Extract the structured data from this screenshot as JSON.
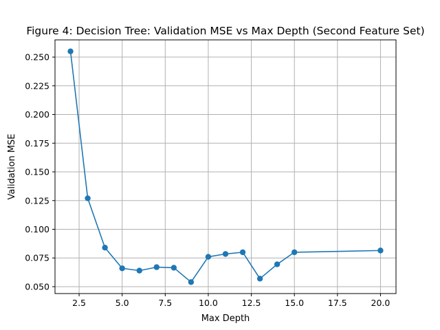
{
  "chart_data": {
    "type": "line",
    "title": "Figure 4: Decision Tree: Validation MSE vs Max Depth (Second Feature Set)",
    "xlabel": "Max Depth",
    "ylabel": "Validation MSE",
    "xlim": [
      1.1,
      20.9
    ],
    "ylim": [
      0.044,
      0.265
    ],
    "xticks": [
      2.5,
      5.0,
      7.5,
      10.0,
      12.5,
      15.0,
      17.5,
      20.0
    ],
    "xtick_labels": [
      "2.5",
      "5.0",
      "7.5",
      "10.0",
      "12.5",
      "15.0",
      "17.5",
      "20.0"
    ],
    "yticks": [
      0.05,
      0.075,
      0.1,
      0.125,
      0.15,
      0.175,
      0.2,
      0.225,
      0.25
    ],
    "ytick_labels": [
      "0.050",
      "0.075",
      "0.100",
      "0.125",
      "0.150",
      "0.175",
      "0.200",
      "0.225",
      "0.250"
    ],
    "grid": true,
    "series": [
      {
        "color": "#1f77b4",
        "marker": "circle",
        "x": [
          2,
          3,
          4,
          5,
          6,
          7,
          8,
          9,
          10,
          11,
          12,
          13,
          14,
          15,
          20
        ],
        "y": [
          0.255,
          0.127,
          0.084,
          0.066,
          0.064,
          0.067,
          0.0665,
          0.054,
          0.076,
          0.0785,
          0.08,
          0.057,
          0.0695,
          0.08,
          0.0815
        ]
      }
    ]
  }
}
